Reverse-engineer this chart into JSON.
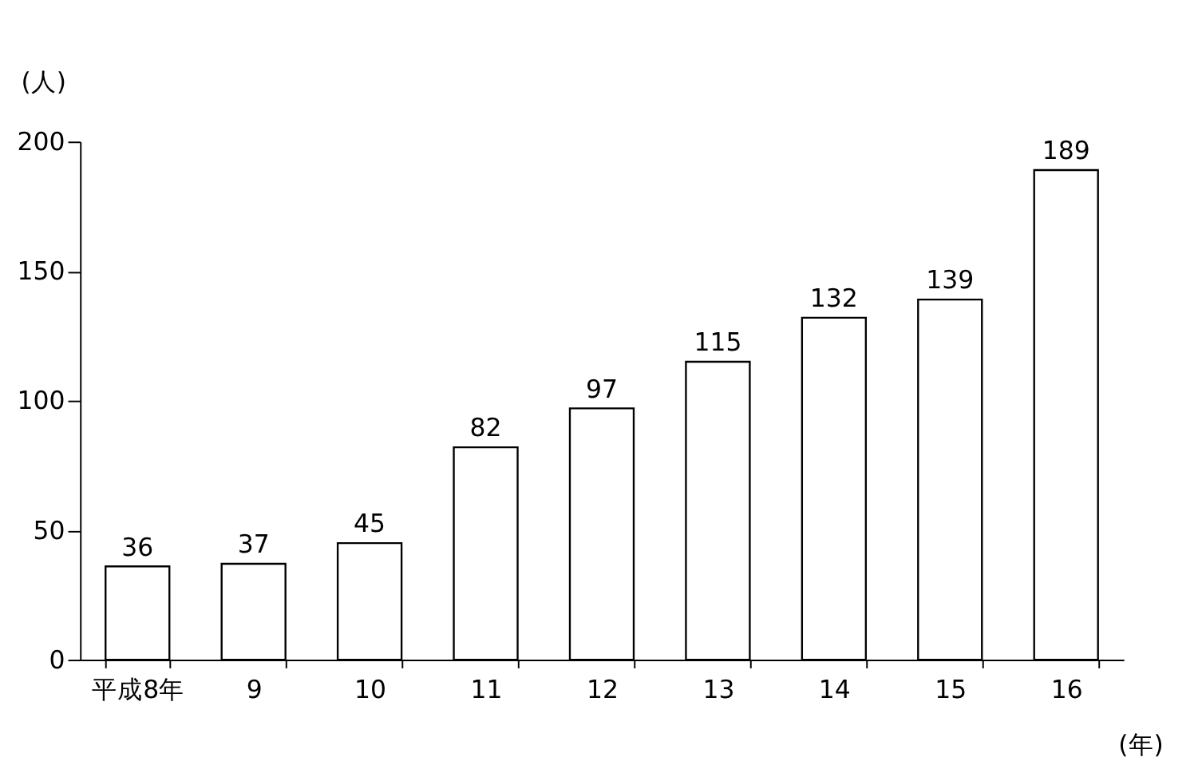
{
  "chart_data": {
    "type": "bar",
    "categories": [
      "平成8年",
      "9",
      "10",
      "11",
      "12",
      "13",
      "14",
      "15",
      "16"
    ],
    "values": [
      36,
      37,
      45,
      82,
      97,
      115,
      132,
      139,
      189
    ],
    "color": "#ffffff",
    "ylabel": "(人)",
    "xlabel": "(年)",
    "ylim": [
      0,
      200
    ],
    "yticks": [
      0,
      50,
      100,
      150,
      200
    ],
    "grid": false,
    "data_labels": true
  }
}
